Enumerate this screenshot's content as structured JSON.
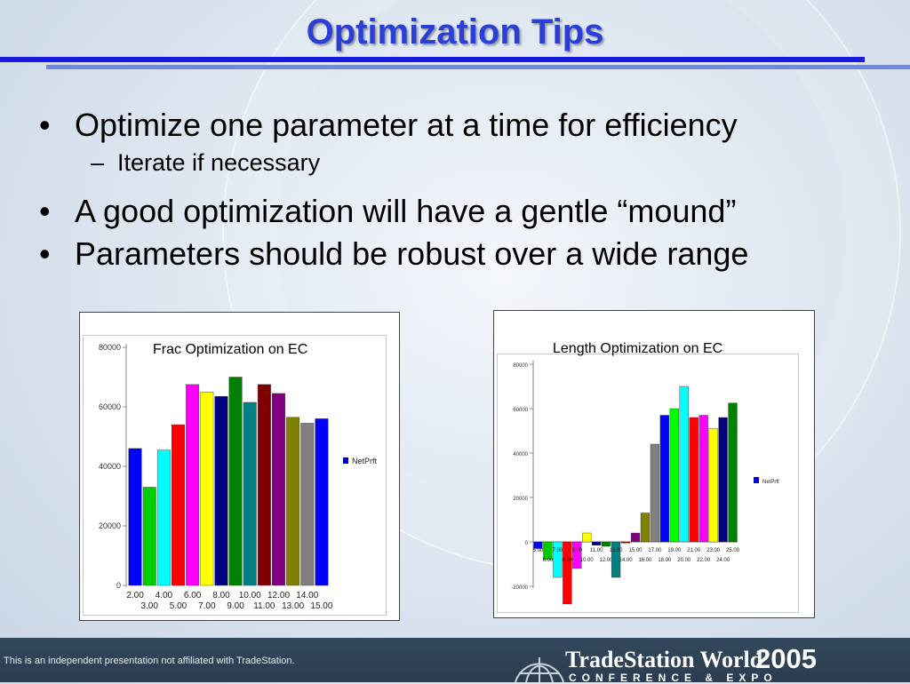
{
  "slide": {
    "title": "Optimization Tips",
    "bullets": [
      "Optimize one parameter at a time for efficiency",
      "A good optimization will have a gentle “mound”",
      "Parameters should be robust over a wide range"
    ],
    "sub_bullet": "Iterate if necessary",
    "bullet_glyph": "•",
    "dash_glyph": "–"
  },
  "footer": {
    "disclaimer": "This is an independent presentation not affiliated with TradeStation.",
    "brand_name": "TradeStation World",
    "brand_year": "2005",
    "brand_sub": "CONFERENCE & EXPO"
  },
  "colors": {
    "title": "#2b3fd6",
    "rule": "#1a1adf",
    "footer": "#34495e"
  },
  "chart_data": [
    {
      "type": "bar",
      "title": "Frac Optimization on EC",
      "legend": "NetPrft",
      "legend_position": "right",
      "categories": [
        "2.00",
        "3.00",
        "4.00",
        "5.00",
        "6.00",
        "7.00",
        "8.00",
        "9.00",
        "10.00",
        "11.00",
        "12.00",
        "13.00",
        "14.00",
        "15.00"
      ],
      "values": [
        46000,
        33000,
        45500,
        54000,
        67500,
        65000,
        63500,
        70000,
        61500,
        67500,
        64500,
        56500,
        54500,
        56000
      ],
      "colors": [
        "#0000ff",
        "#00cc00",
        "#00ffff",
        "#ff0000",
        "#ff00ff",
        "#ffff00",
        "#000080",
        "#008000",
        "#008080",
        "#800000",
        "#800080",
        "#808000",
        "#808080",
        "#0000ff"
      ],
      "ylim": [
        0,
        80000
      ],
      "yticks": [
        "0",
        "20000",
        "40000",
        "60000",
        "80000"
      ]
    },
    {
      "type": "bar",
      "title": "Length Optimization on EC",
      "legend": "NetPrft",
      "legend_position": "right",
      "categories": [
        "5.00",
        "6.00",
        "7.00",
        "8.00",
        "9.00",
        "10.00",
        "11.00",
        "12.00",
        "13.00",
        "14.00",
        "15.00",
        "16.00",
        "17.00",
        "18.00",
        "19.00",
        "20.00",
        "21.00",
        "22.00",
        "23.00",
        "24.00",
        "25.00"
      ],
      "values": [
        -3000,
        -8000,
        -16000,
        -28000,
        -12000,
        4000,
        -1500,
        -2000,
        -16000,
        -500,
        4000,
        13000,
        44000,
        57000,
        60000,
        70000,
        56000,
        57000,
        51000,
        56000,
        62500
      ],
      "colors": [
        "#0000ff",
        "#00cc00",
        "#00ffff",
        "#ff0000",
        "#ff00ff",
        "#ffff00",
        "#000080",
        "#008000",
        "#008080",
        "#800000",
        "#800080",
        "#808000",
        "#808080",
        "#0000ff",
        "#00ff00",
        "#00ffff",
        "#ff0000",
        "#ff00ff",
        "#ffff00",
        "#000080",
        "#008000"
      ],
      "ylim": [
        -20000,
        80000
      ],
      "yticks": [
        "-20000",
        "0",
        "20000",
        "40000",
        "60000",
        "80000"
      ]
    }
  ]
}
